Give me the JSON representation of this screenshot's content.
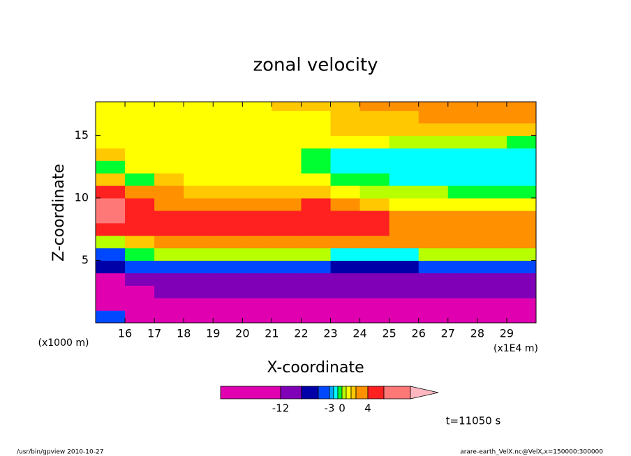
{
  "chart_data": {
    "type": "contour",
    "title": "zonal velocity",
    "x_label": "X-coordinate",
    "y_label": "Z-coordinate",
    "x_unit": "(x1E4 m)",
    "y_unit": "(x1000 m)",
    "xlim": [
      15,
      30
    ],
    "ylim": [
      0,
      17.7
    ],
    "xticks": [
      16,
      17,
      18,
      19,
      20,
      21,
      22,
      23,
      24,
      25,
      26,
      27,
      28,
      29
    ],
    "yticks": [
      5,
      10,
      15
    ],
    "x": [
      15.5,
      16.5,
      17.5,
      18.5,
      19.5,
      20.5,
      21.5,
      22.5,
      23.5,
      24.5,
      25.5,
      26.5,
      27.5,
      28.5,
      29.5
    ],
    "y": [
      0.5,
      1.5,
      2.5,
      3.5,
      4.5,
      5.5,
      6.5,
      7.5,
      8.5,
      9.5,
      10.5,
      11.5,
      12.5,
      13.5,
      14.5,
      15.5,
      16.5,
      17.5
    ],
    "z": [
      [
        -4,
        -13,
        -13,
        -13,
        -13,
        -13,
        -13,
        -13,
        -13,
        -13,
        -13,
        -13,
        -13,
        -13,
        -13
      ],
      [
        -13,
        -13,
        -13,
        -13,
        -13,
        -13,
        -13,
        -13,
        -13,
        -13,
        -13,
        -13,
        -13,
        -13,
        -13
      ],
      [
        -13,
        -13,
        -10,
        -10,
        -10,
        -10,
        -10,
        -10,
        -10,
        -10,
        -10,
        -10,
        -10,
        -10,
        -10
      ],
      [
        -13,
        -10,
        -10,
        -10,
        -10,
        -10,
        -10,
        -10,
        -10,
        -10,
        -10,
        -10,
        -10,
        -10,
        -10
      ],
      [
        -7,
        -4.5,
        -4.5,
        -4.5,
        -4.5,
        -4.5,
        -4.5,
        -4.5,
        -7,
        -7,
        -7,
        -4.5,
        -4.5,
        -4.5,
        -4.5
      ],
      [
        -4.5,
        -0.5,
        0.5,
        0.5,
        0.5,
        0.5,
        0.5,
        0.5,
        -1.5,
        -1.5,
        -1.5,
        0.5,
        0.5,
        0.5,
        0.5
      ],
      [
        0.5,
        2.5,
        3.5,
        3.5,
        3.5,
        3.5,
        3.5,
        3.5,
        3.5,
        3.5,
        3.5,
        3.5,
        3.5,
        3.5,
        3.5
      ],
      [
        5,
        5,
        5,
        5,
        5,
        5,
        5,
        5,
        5,
        5,
        3.5,
        3.5,
        3.5,
        3.5,
        3.5
      ],
      [
        9,
        6,
        6,
        6,
        6,
        6,
        6,
        6,
        6,
        6,
        3.5,
        3.5,
        3.5,
        3.5,
        3.5
      ],
      [
        9,
        6,
        3.5,
        3.5,
        3.5,
        3.5,
        3.5,
        4.5,
        3.5,
        2.5,
        1.5,
        1.5,
        1.5,
        1.5,
        1.5
      ],
      [
        4.5,
        3.5,
        3.5,
        2.5,
        2.5,
        2.5,
        2.5,
        2.5,
        1.5,
        0.5,
        0.5,
        0.5,
        -0.5,
        -0.5,
        -0.5
      ],
      [
        2.5,
        -0.5,
        2.5,
        1.5,
        1.5,
        1.5,
        1.5,
        1.5,
        -0.5,
        -0.5,
        -1.5,
        -1.5,
        -1.5,
        -1.5,
        -1.5
      ],
      [
        -0.5,
        1.5,
        1.5,
        1.5,
        1.5,
        1.5,
        1.5,
        -0.5,
        -1.5,
        -1.5,
        -1.5,
        -1.5,
        -1.5,
        -1.5,
        -1.5
      ],
      [
        2.5,
        1.5,
        1.5,
        1.5,
        1.5,
        1.5,
        1.5,
        -0.5,
        -1.5,
        -1.5,
        -1.5,
        -1.5,
        -1.5,
        -1.5,
        -1.5
      ],
      [
        1.5,
        1.5,
        1.5,
        1.5,
        1.5,
        1.5,
        1.5,
        1.5,
        1.5,
        1.5,
        0.5,
        0.5,
        0.5,
        0.5,
        -0.5
      ],
      [
        1.5,
        1.5,
        1.5,
        1.5,
        1.5,
        1.5,
        1.5,
        1.5,
        2.5,
        2.5,
        2.5,
        2.5,
        2.5,
        2.5,
        2.5
      ],
      [
        1.5,
        1.5,
        1.5,
        1.5,
        1.5,
        1.5,
        1.5,
        1.5,
        2.5,
        2.5,
        2.5,
        3.5,
        3.5,
        3.5,
        3.5
      ],
      [
        1.5,
        1.5,
        1.5,
        1.5,
        1.5,
        1.5,
        2.5,
        2.5,
        2.5,
        3.5,
        3.5,
        3.5,
        3.5,
        3.5,
        3.5
      ]
    ],
    "levels": [
      -12,
      -9,
      -6,
      -3,
      -2,
      -1,
      0,
      1,
      2,
      3,
      4,
      8
    ],
    "colors": [
      "#e000b0",
      "#8000b8",
      "#0000a8",
      "#0048ff",
      "#00a8ff",
      "#00ffff",
      "#00ff30",
      "#b8ff00",
      "#ffff00",
      "#ffc800",
      "#ff9000",
      "#ff2020",
      "#ff7878"
    ],
    "extend_color": "#ffb8c0",
    "colorbar_ticks": [
      -12,
      -3,
      0,
      4
    ],
    "time_label": "t=11050 s",
    "footer_left": "/usr/bin/gpview  2010-10-27",
    "footer_right": "arare-earth_VelX.nc@VelX,x=150000:300000"
  }
}
